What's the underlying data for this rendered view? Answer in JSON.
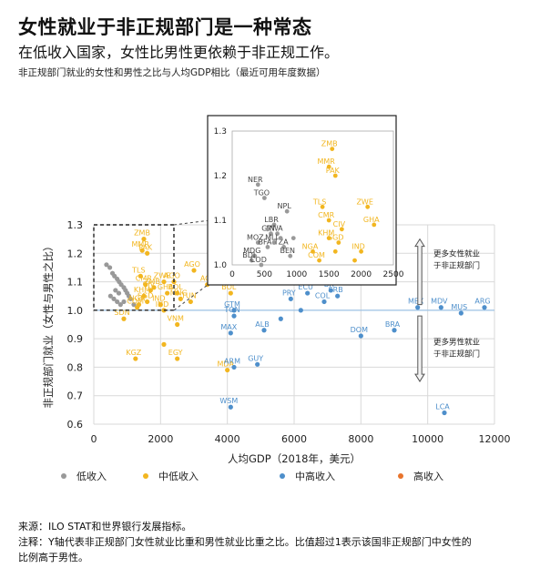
{
  "header": {
    "title": "女性就业于非正规部门是一种常态",
    "subtitle": "在低收入国家，女性比男性更依赖于非正规工作。",
    "description": "非正规部门就业的女性和男性之比与人均GDP相比（最近可用年度数据）"
  },
  "footer": {
    "source": "来源：ILO STAT和世界银行发展指标。",
    "note_line1": "注释：Y轴代表非正规部门女性就业比重和男性就业比重之比。比值超过1表示该国非正规部门中女性的",
    "note_line2": "比例高于男性。"
  },
  "annotations": {
    "upper_line1": "更多女性就业",
    "upper_line2": "于非正规部门",
    "lower_line1": "更多男性就业",
    "lower_line2": "于非正规部门"
  },
  "colors": {
    "low": "#999999",
    "lower_middle": "#F2B620",
    "upper_middle": "#4E8FCB",
    "high": "#E8742C",
    "grid": "#d9d9d9",
    "reference_line": "#9DC3E6"
  },
  "chart_data": {
    "type": "scatter",
    "title": "",
    "xlabel": "人均GDP（2018年，美元）",
    "ylabel": "非正规部门就业（女性与男性之比）",
    "xlim": [
      0,
      12000
    ],
    "ylim": [
      0.6,
      1.3
    ],
    "xticks": [
      0,
      2000,
      4000,
      6000,
      8000,
      10000,
      12000
    ],
    "yticks": [
      0.6,
      0.7,
      0.8,
      0.9,
      1.0,
      1.1,
      1.2,
      1.3
    ],
    "grid": true,
    "legend_position": "bottom",
    "legend": [
      {
        "key": "low",
        "label": "低收入"
      },
      {
        "key": "lower_middle",
        "label": "中低收入"
      },
      {
        "key": "upper_middle",
        "label": "中高收入"
      },
      {
        "key": "high",
        "label": "高收入"
      }
    ],
    "series": [
      {
        "name": "低收入",
        "points": [
          {
            "x": 380,
            "y": 1.16
          },
          {
            "x": 480,
            "y": 1.15
          },
          {
            "x": 560,
            "y": 1.13
          },
          {
            "x": 620,
            "y": 1.12
          },
          {
            "x": 700,
            "y": 1.11
          },
          {
            "x": 760,
            "y": 1.1
          },
          {
            "x": 820,
            "y": 1.09
          },
          {
            "x": 900,
            "y": 1.08
          },
          {
            "x": 950,
            "y": 1.07
          },
          {
            "x": 1000,
            "y": 1.06
          },
          {
            "x": 1050,
            "y": 1.05
          },
          {
            "x": 1100,
            "y": 1.04
          },
          {
            "x": 600,
            "y": 1.04
          },
          {
            "x": 700,
            "y": 1.03
          },
          {
            "x": 800,
            "y": 1.02
          },
          {
            "x": 500,
            "y": 1.05
          },
          {
            "x": 900,
            "y": 1.03
          },
          {
            "x": 1200,
            "y": 1.02
          },
          {
            "x": 650,
            "y": 1.07
          },
          {
            "x": 750,
            "y": 1.06
          }
        ]
      },
      {
        "name": "中低收入",
        "points": [
          {
            "x": 1500,
            "y": 1.25,
            "label": "ZMB"
          },
          {
            "x": 1450,
            "y": 1.21,
            "label": "MMR"
          },
          {
            "x": 1600,
            "y": 1.2,
            "label": "PAK"
          },
          {
            "x": 1400,
            "y": 1.12,
            "label": "TLS"
          },
          {
            "x": 2100,
            "y": 1.1,
            "label": "ZWE"
          },
          {
            "x": 1550,
            "y": 1.09,
            "label": "CMR"
          },
          {
            "x": 1700,
            "y": 1.07,
            "label": "CIV"
          },
          {
            "x": 2200,
            "y": 1.06,
            "label": "GHA"
          },
          {
            "x": 1500,
            "y": 1.05,
            "label": "KHM"
          },
          {
            "x": 1600,
            "y": 1.03,
            "label": "SGD"
          },
          {
            "x": 1350,
            "y": 1.02,
            "label": "NGA"
          },
          {
            "x": 2000,
            "y": 1.02,
            "label": "IND"
          },
          {
            "x": 1300,
            "y": 1.01,
            "label": "COM"
          },
          {
            "x": 2400,
            "y": 1.1,
            "label": "AGO"
          },
          {
            "x": 3000,
            "y": 1.14,
            "label": "AGO"
          },
          {
            "x": 3400,
            "y": 1.09,
            "label": "AO"
          },
          {
            "x": 1800,
            "y": 1.08,
            "label": "ZMB"
          },
          {
            "x": 2500,
            "y": 1.06,
            "label": "BOL"
          },
          {
            "x": 2600,
            "y": 1.04,
            "label": "MNG"
          },
          {
            "x": 2900,
            "y": 1.03,
            "label": "TUN"
          },
          {
            "x": 2100,
            "y": 1.0,
            "label": "IND"
          },
          {
            "x": 900,
            "y": 0.97,
            "label": "SDN"
          },
          {
            "x": 2500,
            "y": 0.95,
            "label": "VNM"
          },
          {
            "x": 1250,
            "y": 0.83,
            "label": "KGZ"
          },
          {
            "x": 2500,
            "y": 0.83,
            "label": "EGY"
          },
          {
            "x": 4000,
            "y": 0.79,
            "label": "MDA"
          },
          {
            "x": 4100,
            "y": 1.06,
            "label": "BOL"
          },
          {
            "x": 2100,
            "y": 0.88,
            "label": ""
          }
        ]
      },
      {
        "name": "中高收入",
        "points": [
          {
            "x": 4200,
            "y": 1.0,
            "label": "GTM"
          },
          {
            "x": 4200,
            "y": 0.98,
            "label": "TON"
          },
          {
            "x": 4100,
            "y": 0.92,
            "label": "MAX"
          },
          {
            "x": 5100,
            "y": 0.93,
            "label": "ALB"
          },
          {
            "x": 4200,
            "y": 0.8,
            "label": "ARM"
          },
          {
            "x": 4900,
            "y": 0.81,
            "label": "GUY"
          },
          {
            "x": 4100,
            "y": 0.66,
            "label": "WSM"
          },
          {
            "x": 5900,
            "y": 1.04,
            "label": "PRY"
          },
          {
            "x": 6400,
            "y": 1.06,
            "label": "ECU"
          },
          {
            "x": 6900,
            "y": 1.03,
            "label": "COL"
          },
          {
            "x": 7100,
            "y": 1.07,
            "label": "BR"
          },
          {
            "x": 7300,
            "y": 1.05,
            "label": "SRB"
          },
          {
            "x": 8000,
            "y": 0.91,
            "label": "DOM"
          },
          {
            "x": 9000,
            "y": 0.93,
            "label": "BRA"
          },
          {
            "x": 9700,
            "y": 1.01,
            "label": "MEX"
          },
          {
            "x": 10400,
            "y": 1.01,
            "label": "MDV"
          },
          {
            "x": 11700,
            "y": 1.01,
            "label": "ARG"
          },
          {
            "x": 11000,
            "y": 0.99,
            "label": "MUS"
          },
          {
            "x": 10500,
            "y": 0.64,
            "label": "LCA"
          },
          {
            "x": 6200,
            "y": 1.0,
            "label": ""
          },
          {
            "x": 5600,
            "y": 0.97,
            "label": ""
          }
        ]
      },
      {
        "name": "高收入",
        "points": []
      }
    ],
    "inset": {
      "xlim": [
        0,
        2500
      ],
      "ylim": [
        1.0,
        1.3
      ],
      "xticks": [
        0,
        500,
        1000,
        1500,
        2000,
        2500
      ],
      "yticks": [
        1.0,
        1.1,
        1.2,
        1.3
      ],
      "points": [
        {
          "x": 400,
          "y": 1.18,
          "label": "NER",
          "group": "low"
        },
        {
          "x": 500,
          "y": 1.15,
          "label": "TGO",
          "group": "low"
        },
        {
          "x": 850,
          "y": 1.12,
          "label": "NPL",
          "group": "low"
        },
        {
          "x": 650,
          "y": 1.09,
          "label": "LBR",
          "group": "low"
        },
        {
          "x": 600,
          "y": 1.07,
          "label": "GIN",
          "group": "low"
        },
        {
          "x": 700,
          "y": 1.07,
          "label": "RWA",
          "group": "low"
        },
        {
          "x": 650,
          "y": 1.05,
          "label": "MLI",
          "group": "low"
        },
        {
          "x": 400,
          "y": 1.05,
          "label": "MOZ",
          "group": "low"
        },
        {
          "x": 800,
          "y": 1.04,
          "label": "TZA",
          "group": "low"
        },
        {
          "x": 550,
          "y": 1.04,
          "label": "BFA",
          "group": "low"
        },
        {
          "x": 900,
          "y": 1.02,
          "label": "BEN",
          "group": "low"
        },
        {
          "x": 350,
          "y": 1.02,
          "label": "MDG",
          "group": "low"
        },
        {
          "x": 300,
          "y": 1.01,
          "label": "BDI",
          "group": "low"
        },
        {
          "x": 450,
          "y": 1.0,
          "label": "COD",
          "group": "low"
        },
        {
          "x": 750,
          "y": 1.06,
          "label": "",
          "group": "low"
        },
        {
          "x": 550,
          "y": 1.08,
          "label": "",
          "group": "low"
        },
        {
          "x": 950,
          "y": 1.06,
          "label": "",
          "group": "low"
        },
        {
          "x": 1550,
          "y": 1.26,
          "label": "ZMB",
          "group": "lower_middle"
        },
        {
          "x": 1500,
          "y": 1.22,
          "label": "MMR",
          "group": "lower_middle"
        },
        {
          "x": 1600,
          "y": 1.2,
          "label": "PAK",
          "group": "lower_middle"
        },
        {
          "x": 1400,
          "y": 1.13,
          "label": "TLS",
          "group": "lower_middle"
        },
        {
          "x": 2100,
          "y": 1.13,
          "label": "ZWE",
          "group": "lower_middle"
        },
        {
          "x": 1500,
          "y": 1.1,
          "label": "CMR",
          "group": "lower_middle"
        },
        {
          "x": 1700,
          "y": 1.08,
          "label": "CIV",
          "group": "lower_middle"
        },
        {
          "x": 2200,
          "y": 1.09,
          "label": "GHA",
          "group": "lower_middle"
        },
        {
          "x": 1500,
          "y": 1.06,
          "label": "KHM",
          "group": "lower_middle"
        },
        {
          "x": 1650,
          "y": 1.05,
          "label": "SGD",
          "group": "lower_middle"
        },
        {
          "x": 1250,
          "y": 1.03,
          "label": "NGA",
          "group": "lower_middle"
        },
        {
          "x": 2000,
          "y": 1.03,
          "label": "IND",
          "group": "lower_middle"
        },
        {
          "x": 1350,
          "y": 1.01,
          "label": "COM",
          "group": "lower_middle"
        },
        {
          "x": 1600,
          "y": 1.03,
          "label": "",
          "group": "lower_middle"
        },
        {
          "x": 1900,
          "y": 1.01,
          "label": "",
          "group": "lower_middle"
        }
      ]
    }
  }
}
